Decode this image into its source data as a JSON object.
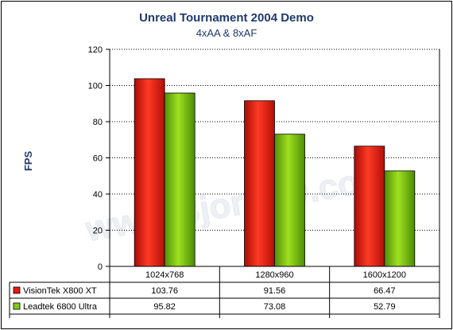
{
  "chart_data": {
    "type": "bar",
    "title": "Unreal Tournament 2004 Demo",
    "subtitle": "4xAA & 8xAF",
    "ylabel": "FPS",
    "xlabel": "",
    "ylim": [
      0,
      120
    ],
    "yticks": [
      0,
      20,
      40,
      60,
      80,
      100,
      120
    ],
    "categories": [
      "1024x768",
      "1280x960",
      "1600x1200"
    ],
    "grid": "horizontal dotted",
    "legend": "data table below chart",
    "watermark": "www.Bjorn3D.com",
    "series": [
      {
        "name": "VisionTek X800 XT",
        "values": [
          103.76,
          91.56,
          66.47
        ],
        "value_labels": [
          "103.76",
          "91.56",
          "66.47"
        ],
        "color": "#e8190f"
      },
      {
        "name": "Leadtek 6800 Ultra",
        "values": [
          95.82,
          73.08,
          52.79
        ],
        "value_labels": [
          "95.82",
          "73.08",
          "52.79"
        ],
        "color": "#7fcc12"
      }
    ]
  }
}
